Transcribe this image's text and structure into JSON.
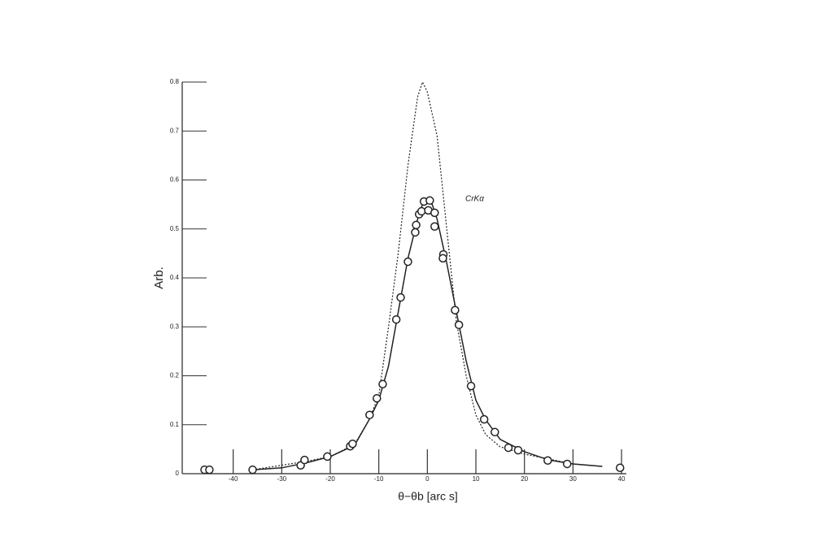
{
  "chart_data": {
    "type": "scatter",
    "x_label": "θ−θb [arc s]",
    "y_label": "Arb.",
    "annotation": "CrKα",
    "xlim": [
      -50.5,
      41
    ],
    "ylim": [
      0,
      0.8
    ],
    "xticks": [
      -40,
      -30,
      -20,
      -10,
      0,
      10,
      20,
      30,
      40
    ],
    "yticks": [
      0,
      0.1,
      0.2,
      0.3,
      0.4,
      0.5,
      0.6,
      0.7,
      0.8
    ],
    "series": [
      {
        "mode": "dashed",
        "color": "#222",
        "x": [
          -36,
          -25,
          -20,
          -15,
          -12,
          -10,
          -8,
          -6,
          -4,
          -2,
          -1,
          0,
          2,
          4,
          6,
          8,
          10,
          12,
          15,
          20,
          30,
          36
        ],
        "values": [
          0.008,
          0.025,
          0.035,
          0.06,
          0.11,
          0.16,
          0.3,
          0.45,
          0.63,
          0.77,
          0.8,
          0.78,
          0.69,
          0.5,
          0.31,
          0.2,
          0.12,
          0.08,
          0.055,
          0.04,
          0.02,
          0.015
        ]
      },
      {
        "mode": "line",
        "color": "#222",
        "x": [
          -36,
          -30,
          -25,
          -20,
          -15,
          -12,
          -10,
          -8,
          -6,
          -4,
          -2,
          -1,
          0,
          1,
          2,
          4,
          6,
          8,
          10,
          12,
          15,
          20,
          25,
          30,
          36
        ],
        "values": [
          0.008,
          0.012,
          0.022,
          0.035,
          0.058,
          0.11,
          0.15,
          0.22,
          0.33,
          0.44,
          0.52,
          0.55,
          0.555,
          0.55,
          0.52,
          0.43,
          0.33,
          0.23,
          0.15,
          0.11,
          0.07,
          0.045,
          0.028,
          0.02,
          0.015
        ]
      },
      {
        "mode": "markers",
        "color": "#222",
        "x": [
          -45.9,
          -44.9,
          -36,
          -26.1,
          -25.3,
          -20.6,
          -15.9,
          -15.4,
          -11.9,
          -10.4,
          -9.2,
          -6.4,
          -5.5,
          -4.0,
          -2.5,
          -2.3,
          -1.7,
          -1.2,
          -0.7,
          0.5,
          0.2,
          1.5,
          1.5,
          3.3,
          3.2,
          5.7,
          6.5,
          9.0,
          11.7,
          13.9,
          16.7,
          18.7,
          24.8,
          28.8,
          39.7
        ],
        "values": [
          0.008,
          0.008,
          0.008,
          0.017,
          0.028,
          0.035,
          0.056,
          0.061,
          0.12,
          0.154,
          0.183,
          0.315,
          0.36,
          0.433,
          0.493,
          0.508,
          0.53,
          0.536,
          0.556,
          0.558,
          0.538,
          0.533,
          0.505,
          0.448,
          0.44,
          0.334,
          0.304,
          0.179,
          0.111,
          0.085,
          0.053,
          0.048,
          0.027,
          0.02,
          0.012
        ]
      }
    ]
  }
}
